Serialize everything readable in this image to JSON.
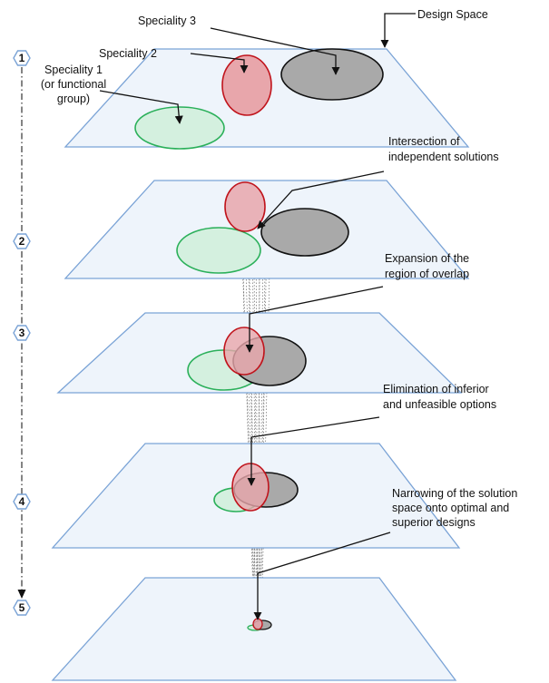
{
  "steps": [
    "1",
    "2",
    "3",
    "4",
    "5"
  ],
  "labels": {
    "design_space": "Design Space",
    "speciality_3": "Speciality 3",
    "speciality_2": "Speciality 2",
    "speciality_1": [
      "Speciality 1",
      "(or functional",
      "group)"
    ],
    "intersection": [
      "Intersection of",
      "independent solutions"
    ],
    "expansion": [
      "Expansion of the",
      "region of overlap"
    ],
    "elimination": [
      "Elimination of inferior",
      "and unfeasible options"
    ],
    "narrowing": [
      "Narrowing of the solution",
      "space onto optimal and",
      "superior designs"
    ]
  },
  "colors": {
    "plane_fill": "#eef4fb",
    "plane_stroke": "#7aa3d6",
    "red_fill": "#e8a6ab",
    "red_stroke": "#c0141c",
    "green_fill": "#d4f0df",
    "green_stroke": "#2bb05a",
    "gray_fill": "#a9a9a9",
    "gray_stroke": "#111111",
    "hex_stroke": "#7aa3d6"
  }
}
